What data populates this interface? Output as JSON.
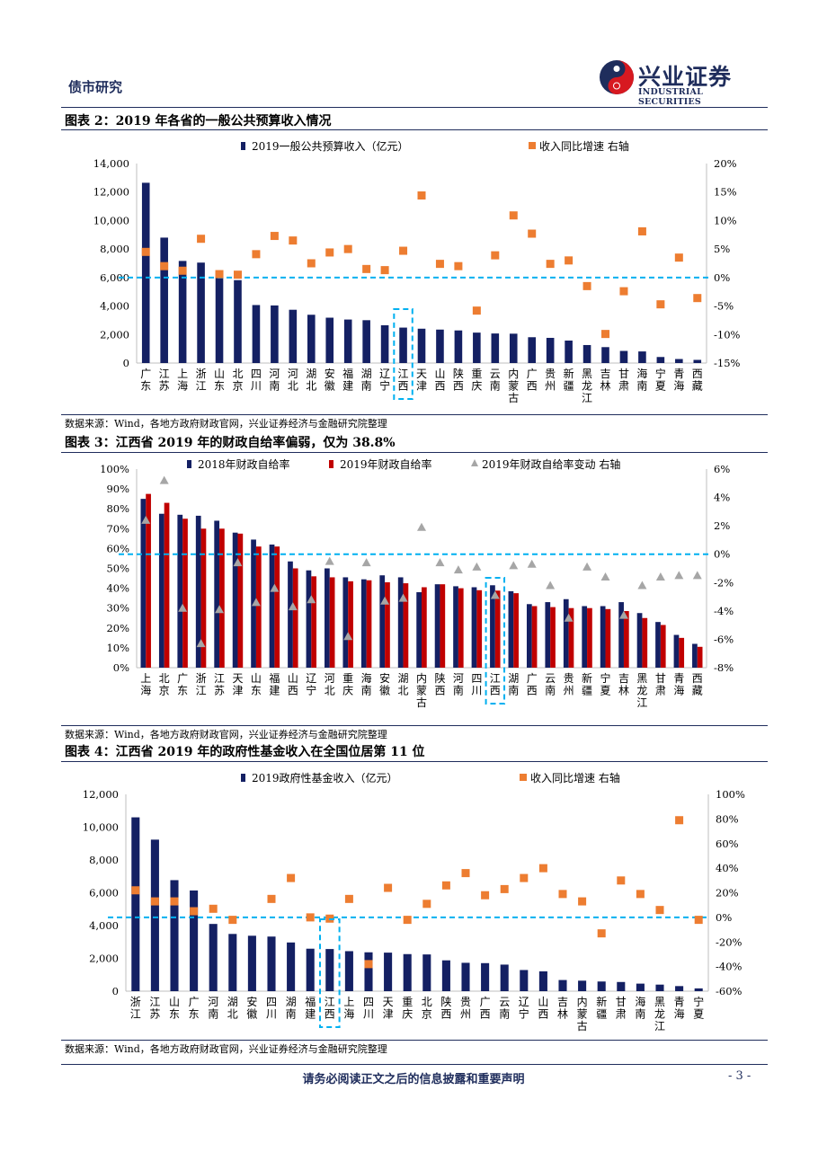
{
  "header": {
    "section_title": "债市研究",
    "logo_cn": "兴业证券",
    "logo_en": "INDUSTRIAL SECURITIES"
  },
  "footer": {
    "disclaimer": "请务必阅读正文之后的信息披露和重要声明",
    "page": "- 3 -"
  },
  "figures": [
    {
      "title": "图表 2：2019 年各省的一般公共预算收入情况",
      "source": "数据来源：Wind，各地方政府财政官网，兴业证券经济与金融研究院整理"
    },
    {
      "title": "图表 3：江西省 2019 年的财政自给率偏弱，仅为 38.8%",
      "source": "数据来源：Wind，各地方政府财政官网，兴业证券经济与金融研究院整理"
    },
    {
      "title": "图表 4：江西省 2019 年的政府性基金收入在全国位居第 11 位",
      "source": "数据来源：Wind，各地方政府财政官网，兴业证券经济与金融研究院整理"
    }
  ],
  "colors": {
    "navy": "#142063",
    "orange": "#ED7D31",
    "red": "#C00000",
    "gray": "#A6A6A6",
    "highlight": "#00B0F0",
    "brand": "#1f2d5c"
  },
  "chart_data": [
    {
      "type": "bar",
      "categories": [
        "广东",
        "江苏",
        "上海",
        "浙江",
        "山东",
        "北京",
        "四川",
        "河南",
        "河北",
        "湖北",
        "安徽",
        "福建",
        "湖南",
        "辽宁",
        "江西",
        "天津",
        "山西",
        "陕西",
        "重庆",
        "云南",
        "内蒙古",
        "广西",
        "贵州",
        "新疆",
        "黑龙江",
        "吉林",
        "甘肃",
        "海南",
        "宁夏",
        "青海",
        "西藏"
      ],
      "series": [
        {
          "name": "2019一般公共预算收入（亿元）",
          "kind": "bar",
          "axis": "left",
          "values": [
            12651,
            8802,
            7165,
            7048,
            6370,
            5817,
            4070,
            4042,
            3739,
            3388,
            3183,
            3053,
            3007,
            2652,
            2487,
            2410,
            2348,
            2288,
            2135,
            2074,
            2060,
            1812,
            1767,
            1577,
            1263,
            1117,
            850,
            814,
            424,
            282,
            222
          ]
        },
        {
          "name": "收入同比增速 右轴",
          "kind": "scatter",
          "axis": "right",
          "values": [
            4.5,
            2.0,
            1.2,
            6.8,
            0.6,
            0.5,
            4.1,
            7.3,
            6.5,
            2.5,
            4.4,
            5.0,
            1.5,
            1.3,
            4.7,
            14.4,
            2.4,
            2.0,
            -5.8,
            3.9,
            10.9,
            7.7,
            2.4,
            3.0,
            -1.5,
            -9.9,
            -2.4,
            8.1,
            -4.7,
            3.5,
            -3.6
          ]
        }
      ],
      "ylim_left": [
        0,
        14000
      ],
      "yticks_left": [
        "0",
        "2,000",
        "4,000",
        "6,000",
        "8,000",
        "10,000",
        "12,000",
        "14,000"
      ],
      "ylim_right": [
        -15,
        20
      ],
      "yticks_right": [
        "-15%",
        "-10%",
        "-5%",
        "0%",
        "5%",
        "10%",
        "15%",
        "20%"
      ],
      "highlight_category": "江西"
    },
    {
      "type": "bar",
      "categories": [
        "上海",
        "北京",
        "广东",
        "浙江",
        "江苏",
        "天津",
        "山东",
        "福建",
        "山西",
        "辽宁",
        "河北",
        "重庆",
        "海南",
        "安徽",
        "湖北",
        "内蒙古",
        "陕西",
        "河南",
        "四川",
        "江西",
        "湖南",
        "广西",
        "云南",
        "贵州",
        "新疆",
        "宁夏",
        "吉林",
        "黑龙江",
        "甘肃",
        "青海",
        "西藏"
      ],
      "series": [
        {
          "name": "2018年财政自给率",
          "kind": "bar",
          "axis": "left",
          "values": [
            85,
            77.5,
            77,
            76.5,
            74,
            68,
            64.5,
            62,
            53.5,
            49,
            50,
            45.5,
            44.5,
            46.5,
            45.5,
            38,
            42,
            41,
            40.5,
            41.5,
            38.5,
            32,
            33,
            34.5,
            31,
            31,
            33,
            27.5,
            23,
            16.5,
            12
          ]
        },
        {
          "name": "2019年财政自给率",
          "kind": "bar",
          "axis": "left",
          "values": [
            87.5,
            83,
            75,
            70,
            70,
            67.5,
            61,
            61,
            50,
            46,
            45.5,
            43.5,
            44,
            43,
            42.5,
            40.5,
            42,
            40,
            39,
            38.8,
            37.5,
            31,
            30.5,
            30,
            30,
            29.5,
            28.5,
            25,
            21.5,
            15,
            10.5
          ]
        },
        {
          "name": "2019年财政自给率变动 右轴",
          "kind": "scatter",
          "axis": "right",
          "values": [
            2.4,
            5.2,
            -3.8,
            -6.3,
            -3.9,
            -0.6,
            -3.4,
            -2.4,
            -3.7,
            -3.2,
            -0.5,
            -5.8,
            -0.6,
            -3.3,
            -3.1,
            1.9,
            -0.6,
            -1.1,
            -0.9,
            -2.9,
            -0.8,
            -0.7,
            -2.2,
            -4.5,
            -0.9,
            -1.6,
            -4.3,
            -2.2,
            -1.6,
            -1.5,
            -1.5
          ]
        }
      ],
      "ylim_left": [
        0,
        100
      ],
      "yticks_left": [
        "0%",
        "10%",
        "20%",
        "30%",
        "40%",
        "50%",
        "60%",
        "70%",
        "80%",
        "90%",
        "100%"
      ],
      "ylim_right": [
        -8,
        6
      ],
      "yticks_right": [
        "-8%",
        "-6%",
        "-4%",
        "-2%",
        "0%",
        "2%",
        "4%",
        "6%"
      ],
      "highlight_category": "江西"
    },
    {
      "type": "bar",
      "categories": [
        "浙江",
        "江苏",
        "山东",
        "广东",
        "河南",
        "湖北",
        "安徽",
        "四川",
        "湖南",
        "福建",
        "江西",
        "上海",
        "四川",
        "天津",
        "重庆",
        "北京",
        "陕西",
        "贵州",
        "广西",
        "云南",
        "辽宁",
        "山西",
        "吉林",
        "内蒙古",
        "新疆",
        "甘肃",
        "海南",
        "黑龙江",
        "青海",
        "宁夏"
      ],
      "series": [
        {
          "name": "2019政府性基金收入（亿元）",
          "kind": "bar",
          "axis": "left",
          "values": [
            10600,
            9240,
            6770,
            6140,
            4100,
            3490,
            3380,
            3330,
            2970,
            2590,
            2570,
            2440,
            2370,
            2350,
            2260,
            2240,
            1880,
            1730,
            1710,
            1620,
            1290,
            1210,
            680,
            640,
            590,
            560,
            460,
            400,
            310,
            170
          ]
        },
        {
          "name": "收入同比增速 右轴",
          "kind": "scatter",
          "axis": "right",
          "values": [
            22,
            13,
            13,
            5,
            7,
            -2,
            null,
            15,
            32,
            0,
            -1,
            15,
            -38,
            24,
            -2,
            11,
            26,
            36,
            18,
            23,
            32,
            40,
            19,
            13,
            -13,
            30,
            19,
            6,
            79,
            -2
          ]
        }
      ],
      "ylim_left": [
        0,
        12000
      ],
      "yticks_left": [
        "0",
        "2,000",
        "4,000",
        "6,000",
        "8,000",
        "10,000",
        "12,000"
      ],
      "ylim_right": [
        -60,
        100
      ],
      "yticks_right": [
        "-60%",
        "-40%",
        "-20%",
        "0%",
        "20%",
        "40%",
        "60%",
        "80%",
        "100%"
      ],
      "highlight_category": "江西"
    }
  ]
}
